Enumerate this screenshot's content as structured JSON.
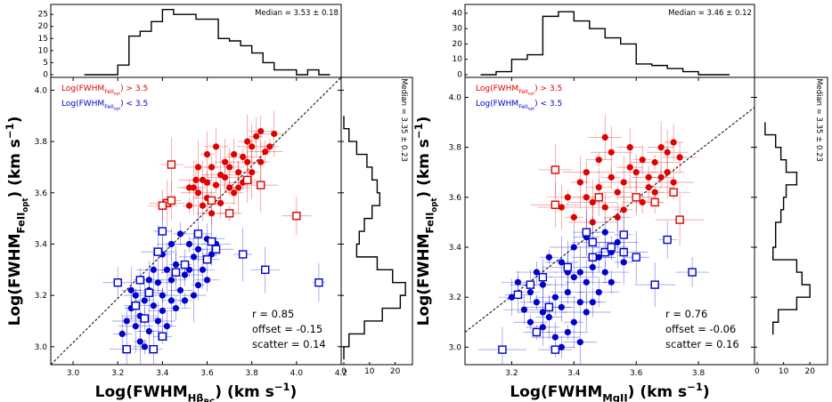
{
  "chart_data": [
    {
      "type": "scatter",
      "xlabel": "Log(FWHM",
      "xlabel_sub": "Hβ",
      "xlabel_subsub": "BC",
      "xlabel_tail": ") (km s",
      "ylabel": "Log(FWHM",
      "ylabel_sub": "FeII",
      "ylabel_subsub": "opt",
      "ylabel_tail": ") (km s",
      "unit_exp": "−1",
      "xlim": [
        2.9,
        4.2
      ],
      "ylim": [
        2.93,
        4.05
      ],
      "xticks": [
        "3.0",
        "3.2",
        "3.4",
        "3.6",
        "3.8",
        "4.0",
        "4.2"
      ],
      "yticks": [
        "3.0",
        "3.2",
        "3.4",
        "3.6",
        "3.8",
        "4.0"
      ],
      "legend_red_prefix": "Log(FWHM",
      "legend_red_sub": "FeII",
      "legend_red_subsub": "opt",
      "legend_red_tail": ") > 3.5",
      "legend_blue_tail": ") < 3.5",
      "legend_red_color": "#e00000",
      "legend_blue_color": "#0000cc",
      "stats": {
        "r": "r  =  0.85",
        "offset": "offset =  -0.15",
        "scatter": "scatter = 0.14"
      },
      "one_to_one": [
        [
          2.9,
          2.93
        ],
        [
          4.2,
          4.05
        ]
      ],
      "top_hist": {
        "median": "Median =  3.53 ± 0.18",
        "yticks": [
          "0",
          "5",
          "10",
          "15",
          "20",
          "25"
        ],
        "ymax": 28,
        "edges": [
          3.05,
          3.1,
          3.15,
          3.2,
          3.25,
          3.3,
          3.35,
          3.4,
          3.45,
          3.5,
          3.55,
          3.6,
          3.65,
          3.7,
          3.75,
          3.8,
          3.85,
          3.9,
          3.95,
          4.0,
          4.05,
          4.1,
          4.15
        ],
        "counts": [
          0,
          0,
          0,
          4,
          16,
          18,
          22,
          27,
          25,
          25,
          23,
          23,
          15,
          14,
          12,
          9,
          5,
          2,
          2,
          0,
          2,
          0
        ]
      },
      "right_hist": {
        "median": "Median =  3.35 ± 0.23",
        "xticks": [
          "0",
          "10",
          "20"
        ],
        "xmax": 25,
        "edges": [
          2.95,
          3.0,
          3.05,
          3.1,
          3.15,
          3.2,
          3.25,
          3.3,
          3.35,
          3.4,
          3.45,
          3.5,
          3.55,
          3.6,
          3.65,
          3.7,
          3.75,
          3.8,
          3.85,
          3.9
        ],
        "counts": [
          0,
          2,
          8,
          15,
          22,
          24,
          19,
          13,
          5,
          6,
          8,
          11,
          14,
          13,
          11,
          9,
          5,
          2,
          0
        ]
      },
      "points": {
        "red_circles": [
          [
            3.52,
            3.55
          ],
          [
            3.54,
            3.62
          ],
          [
            3.56,
            3.6
          ],
          [
            3.58,
            3.65
          ],
          [
            3.6,
            3.58
          ],
          [
            3.62,
            3.7
          ],
          [
            3.64,
            3.63
          ],
          [
            3.66,
            3.67
          ],
          [
            3.68,
            3.72
          ],
          [
            3.7,
            3.7
          ],
          [
            3.72,
            3.75
          ],
          [
            3.74,
            3.68
          ],
          [
            3.76,
            3.74
          ],
          [
            3.78,
            3.8
          ],
          [
            3.8,
            3.78
          ],
          [
            3.82,
            3.82
          ],
          [
            3.84,
            3.84
          ],
          [
            3.86,
            3.76
          ],
          [
            3.88,
            3.78
          ],
          [
            3.56,
            3.7
          ],
          [
            3.6,
            3.75
          ],
          [
            3.64,
            3.78
          ],
          [
            3.68,
            3.66
          ],
          [
            3.72,
            3.6
          ],
          [
            3.76,
            3.64
          ],
          [
            3.8,
            3.68
          ],
          [
            3.9,
            3.83
          ],
          [
            3.55,
            3.65
          ],
          [
            3.58,
            3.55
          ],
          [
            3.62,
            3.52
          ],
          [
            3.7,
            3.62
          ],
          [
            3.74,
            3.62
          ],
          [
            3.78,
            3.72
          ],
          [
            3.84,
            3.72
          ],
          [
            3.66,
            3.56
          ],
          [
            3.6,
            3.64
          ],
          [
            3.52,
            3.62
          ]
        ],
        "red_squares": [
          [
            3.44,
            3.71
          ],
          [
            3.42,
            3.56
          ],
          [
            3.44,
            3.57
          ],
          [
            3.4,
            3.55
          ],
          [
            3.62,
            3.57
          ],
          [
            3.7,
            3.52
          ],
          [
            3.84,
            3.63
          ],
          [
            3.78,
            3.65
          ],
          [
            4.0,
            3.51
          ]
        ],
        "blue_circles": [
          [
            3.22,
            3.05
          ],
          [
            3.24,
            3.1
          ],
          [
            3.26,
            3.15
          ],
          [
            3.28,
            3.2
          ],
          [
            3.3,
            3.12
          ],
          [
            3.32,
            3.18
          ],
          [
            3.34,
            3.22
          ],
          [
            3.36,
            3.16
          ],
          [
            3.38,
            3.25
          ],
          [
            3.4,
            3.2
          ],
          [
            3.42,
            3.3
          ],
          [
            3.44,
            3.26
          ],
          [
            3.46,
            3.32
          ],
          [
            3.48,
            3.22
          ],
          [
            3.5,
            3.28
          ],
          [
            3.52,
            3.3
          ],
          [
            3.54,
            3.35
          ],
          [
            3.56,
            3.38
          ],
          [
            3.58,
            3.3
          ],
          [
            3.6,
            3.42
          ],
          [
            3.62,
            3.36
          ],
          [
            3.64,
            3.4
          ],
          [
            3.3,
            3.02
          ],
          [
            3.34,
            3.06
          ],
          [
            3.38,
            3.1
          ],
          [
            3.42,
            3.08
          ],
          [
            3.46,
            3.15
          ],
          [
            3.5,
            3.18
          ],
          [
            3.54,
            3.2
          ],
          [
            3.36,
            3.3
          ],
          [
            3.4,
            3.36
          ],
          [
            3.44,
            3.4
          ],
          [
            3.48,
            3.44
          ],
          [
            3.32,
            3.0
          ],
          [
            3.28,
            3.08
          ],
          [
            3.26,
            3.22
          ],
          [
            3.34,
            3.26
          ],
          [
            3.56,
            3.24
          ],
          [
            3.6,
            3.26
          ],
          [
            3.52,
            3.4
          ],
          [
            3.44,
            3.18
          ],
          [
            3.4,
            3.14
          ]
        ],
        "blue_squares": [
          [
            3.24,
            2.99
          ],
          [
            3.36,
            2.99
          ],
          [
            3.2,
            3.25
          ],
          [
            3.3,
            3.26
          ],
          [
            3.34,
            3.21
          ],
          [
            3.38,
            3.37
          ],
          [
            3.4,
            3.45
          ],
          [
            3.46,
            3.29
          ],
          [
            3.5,
            3.32
          ],
          [
            3.6,
            3.34
          ],
          [
            3.64,
            3.38
          ],
          [
            3.76,
            3.36
          ],
          [
            3.86,
            3.3
          ],
          [
            4.1,
            3.25
          ],
          [
            3.28,
            3.16
          ],
          [
            3.32,
            3.11
          ],
          [
            3.4,
            3.04
          ],
          [
            3.56,
            3.44
          ],
          [
            3.62,
            3.41
          ]
        ]
      }
    },
    {
      "type": "scatter",
      "xlabel": "Log(FWHM",
      "xlabel_sub": "MgII",
      "xlabel_tail": ") (km s",
      "ylabel": "Log(FWHM",
      "ylabel_sub": "FeII",
      "ylabel_subsub": "opt",
      "ylabel_tail": ") (km s",
      "unit_exp": "−1",
      "xlim": [
        3.05,
        3.98
      ],
      "ylim": [
        2.93,
        4.08
      ],
      "xticks": [
        "3.2",
        "3.4",
        "3.6",
        "3.8"
      ],
      "yticks": [
        "3.0",
        "3.2",
        "3.4",
        "3.6",
        "3.8",
        "4.0"
      ],
      "legend_red_prefix": "Log(FWHM",
      "legend_red_sub": "FeII",
      "legend_red_subsub": "opt",
      "legend_red_tail": ") > 3.5",
      "legend_blue_tail": ") < 3.5",
      "legend_red_color": "#e00000",
      "legend_blue_color": "#0000cc",
      "stats": {
        "r": "r  =  0.76",
        "offset": "offset =  -0.06",
        "scatter": "scatter = 0.16"
      },
      "one_to_one": [
        [
          3.05,
          3.06
        ],
        [
          3.98,
          3.96
        ]
      ],
      "top_hist": {
        "median": "Median =  3.46 ± 0.12",
        "yticks": [
          "0",
          "10",
          "20",
          "30",
          "40"
        ],
        "ymax": 44,
        "edges": [
          3.1,
          3.15,
          3.2,
          3.25,
          3.3,
          3.35,
          3.4,
          3.45,
          3.5,
          3.55,
          3.6,
          3.65,
          3.7,
          3.75,
          3.8,
          3.85,
          3.9
        ],
        "counts": [
          0,
          2,
          10,
          13,
          38,
          41,
          35,
          30,
          24,
          20,
          7,
          6,
          4,
          2,
          0,
          0
        ]
      },
      "right_hist": {
        "median": "Median =  3.35 ± 0.23",
        "xticks": [
          "0",
          "10",
          "20"
        ],
        "xmax": 25,
        "edges": [
          3.05,
          3.1,
          3.15,
          3.2,
          3.25,
          3.3,
          3.35,
          3.4,
          3.45,
          3.5,
          3.55,
          3.6,
          3.65,
          3.7,
          3.75,
          3.8,
          3.85,
          3.9
        ],
        "counts": [
          6,
          8,
          15,
          20,
          17,
          15,
          6,
          7,
          7,
          9,
          10,
          11,
          15,
          11,
          9,
          7,
          3
        ]
      },
      "points": {
        "red_circles": [
          [
            3.4,
            3.52
          ],
          [
            3.44,
            3.6
          ],
          [
            3.46,
            3.58
          ],
          [
            3.48,
            3.64
          ],
          [
            3.5,
            3.56
          ],
          [
            3.52,
            3.68
          ],
          [
            3.54,
            3.62
          ],
          [
            3.56,
            3.66
          ],
          [
            3.58,
            3.72
          ],
          [
            3.6,
            3.7
          ],
          [
            3.62,
            3.75
          ],
          [
            3.64,
            3.68
          ],
          [
            3.66,
            3.74
          ],
          [
            3.68,
            3.8
          ],
          [
            3.7,
            3.78
          ],
          [
            3.72,
            3.82
          ],
          [
            3.74,
            3.76
          ],
          [
            3.44,
            3.7
          ],
          [
            3.48,
            3.75
          ],
          [
            3.52,
            3.78
          ],
          [
            3.56,
            3.55
          ],
          [
            3.6,
            3.6
          ],
          [
            3.64,
            3.64
          ],
          [
            3.68,
            3.68
          ],
          [
            3.38,
            3.6
          ],
          [
            3.42,
            3.66
          ],
          [
            3.5,
            3.84
          ],
          [
            3.46,
            3.5
          ],
          [
            3.54,
            3.52
          ],
          [
            3.62,
            3.58
          ],
          [
            3.66,
            3.62
          ],
          [
            3.7,
            3.7
          ],
          [
            3.36,
            3.56
          ],
          [
            3.58,
            3.8
          ],
          [
            3.72,
            3.66
          ]
        ],
        "red_squares": [
          [
            3.34,
            3.71
          ],
          [
            3.34,
            3.57
          ],
          [
            3.48,
            3.6
          ],
          [
            3.6,
            3.6
          ],
          [
            3.66,
            3.58
          ],
          [
            3.72,
            3.62
          ],
          [
            3.74,
            3.51
          ]
        ],
        "blue_circles": [
          [
            3.2,
            3.2
          ],
          [
            3.24,
            3.15
          ],
          [
            3.26,
            3.22
          ],
          [
            3.28,
            3.18
          ],
          [
            3.3,
            3.25
          ],
          [
            3.32,
            3.12
          ],
          [
            3.34,
            3.2
          ],
          [
            3.36,
            3.16
          ],
          [
            3.38,
            3.22
          ],
          [
            3.4,
            3.28
          ],
          [
            3.42,
            3.3
          ],
          [
            3.44,
            3.26
          ],
          [
            3.46,
            3.32
          ],
          [
            3.48,
            3.36
          ],
          [
            3.5,
            3.3
          ],
          [
            3.52,
            3.38
          ],
          [
            3.54,
            3.42
          ],
          [
            3.56,
            3.34
          ],
          [
            3.3,
            3.08
          ],
          [
            3.34,
            3.04
          ],
          [
            3.36,
            3.0
          ],
          [
            3.38,
            3.06
          ],
          [
            3.4,
            3.1
          ],
          [
            3.42,
            3.02
          ],
          [
            3.44,
            3.14
          ],
          [
            3.46,
            3.18
          ],
          [
            3.28,
            3.3
          ],
          [
            3.32,
            3.36
          ],
          [
            3.36,
            3.34
          ],
          [
            3.4,
            3.4
          ],
          [
            3.44,
            3.44
          ],
          [
            3.48,
            3.22
          ],
          [
            3.52,
            3.26
          ],
          [
            3.26,
            3.1
          ],
          [
            3.3,
            3.14
          ],
          [
            3.38,
            3.3
          ],
          [
            3.42,
            3.18
          ],
          [
            3.5,
            3.46
          ],
          [
            3.22,
            3.26
          ]
        ],
        "blue_squares": [
          [
            3.17,
            2.99
          ],
          [
            3.22,
            3.21
          ],
          [
            3.26,
            3.25
          ],
          [
            3.3,
            3.28
          ],
          [
            3.34,
            2.99
          ],
          [
            3.38,
            3.32
          ],
          [
            3.44,
            3.46
          ],
          [
            3.46,
            3.36
          ],
          [
            3.5,
            3.38
          ],
          [
            3.52,
            3.4
          ],
          [
            3.56,
            3.38
          ],
          [
            3.6,
            3.36
          ],
          [
            3.66,
            3.25
          ],
          [
            3.7,
            3.43
          ],
          [
            3.78,
            3.3
          ],
          [
            3.32,
            3.16
          ],
          [
            3.28,
            3.06
          ],
          [
            3.46,
            3.42
          ],
          [
            3.56,
            3.45
          ]
        ]
      }
    }
  ]
}
